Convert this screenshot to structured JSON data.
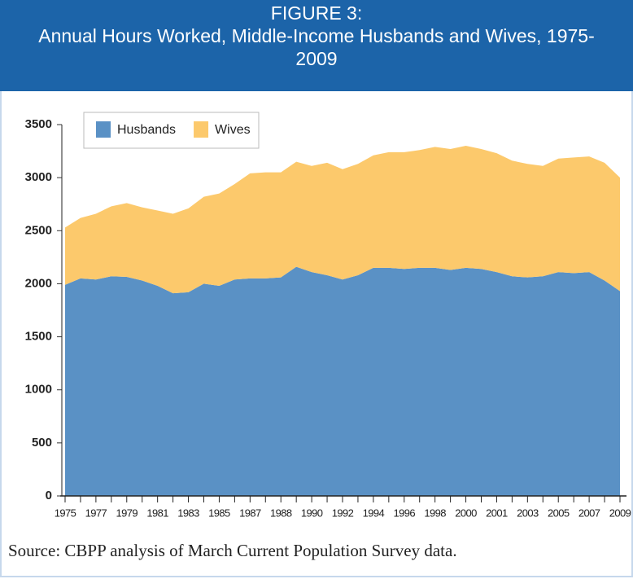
{
  "header": {
    "figure": "FIGURE 3:",
    "title": "Annual Hours Worked, Middle-Income Husbands and Wives, 1975-2009"
  },
  "chart_data": {
    "type": "stacked_area",
    "categories": [
      "1975",
      null,
      "1977",
      null,
      "1979",
      null,
      "1981",
      null,
      "1983",
      null,
      "1985",
      null,
      "1987",
      null,
      "1988",
      null,
      "1990",
      null,
      "1992",
      null,
      "1994",
      null,
      "1996",
      null,
      "1998",
      null,
      "2000",
      null,
      "2001",
      null,
      "2003",
      null,
      "2005",
      null,
      "2007",
      null,
      "2009"
    ],
    "series": [
      {
        "name": "Husbands",
        "color": "#5a91c5",
        "values": [
          1990,
          2050,
          2040,
          2070,
          2065,
          2030,
          1980,
          1910,
          1920,
          2000,
          1980,
          2040,
          2050,
          2050,
          2060,
          2160,
          2110,
          2080,
          2040,
          2080,
          2150,
          2150,
          2140,
          2150,
          2150,
          2130,
          2150,
          2140,
          2110,
          2070,
          2060,
          2070,
          2110,
          2100,
          2110,
          2030,
          1930
        ]
      },
      {
        "name": "Wives",
        "color": "#fcc96c",
        "values": [
          540,
          570,
          620,
          660,
          695,
          690,
          710,
          750,
          790,
          820,
          870,
          900,
          990,
          1000,
          990,
          990,
          1000,
          1060,
          1040,
          1050,
          1060,
          1090,
          1100,
          1110,
          1140,
          1140,
          1150,
          1130,
          1120,
          1090,
          1070,
          1040,
          1070,
          1090,
          1090,
          1110,
          1070
        ]
      }
    ],
    "ylim": [
      0,
      3500
    ],
    "yticks": [
      0,
      500,
      1000,
      1500,
      2000,
      2500,
      3000,
      3500
    ],
    "grid": false,
    "legend": "top-left"
  },
  "footer": {
    "source": "Source: CBPP analysis of March Current Population Survey data."
  }
}
